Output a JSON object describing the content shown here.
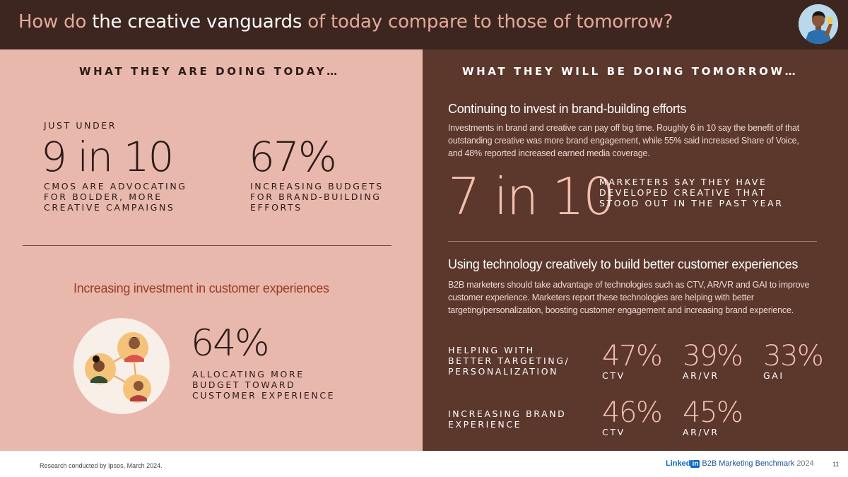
{
  "header": {
    "title_parts": [
      "How do ",
      "the creative vanguards",
      " of today compare to those of tomorrow?"
    ]
  },
  "left": {
    "section_heading": "WHAT THEY ARE DOING TODAY…",
    "stat1": {
      "prefix": "JUST UNDER",
      "value": "9 in 10",
      "desc_lines": [
        "CMOs ARE ADVOCATING",
        "FOR BOLDER, MORE",
        "CREATIVE CAMPAIGNS"
      ]
    },
    "stat2": {
      "value": "67%",
      "desc_lines": [
        "INCREASING BUDGETS",
        "FOR BRAND-BUILDING",
        "EFFORTS"
      ]
    },
    "heading2": "Increasing investment in customer experiences",
    "stat3": {
      "value": "64%",
      "desc_lines": [
        "ALLOCATING MORE",
        "BUDGET TOWARD",
        "CUSTOMER EXPERIENCE"
      ]
    }
  },
  "right": {
    "section_heading": "WHAT THEY WILL BE DOING TOMORROW…",
    "block1": {
      "heading": "Continuing to invest in brand-building efforts",
      "body": "Investments in brand and creative can pay off big time. Roughly 6 in 10 say the benefit of that outstanding creative was more brand engagement, while 55% said increased Share of Voice, and 48% reported increased earned media coverage.",
      "big": "7 in 10",
      "desc_lines": [
        "MARKETERS SAY THEY HAVE",
        "DEVELOPED CREATIVE THAT",
        "STOOD OUT IN THE PAST YEAR"
      ]
    },
    "block2": {
      "heading": "Using technology creatively to build better customer experiences",
      "body": "B2B marketers should take advantage of technologies such as CTV, AR/VR and GAI to improve customer experience. Marketers report these technologies are helping with better targeting/personalization, boosting customer engagement and increasing brand experience.",
      "row1": {
        "label_lines": [
          "HELPING WITH",
          "BETTER TARGETING/",
          "PERSONALIZATION"
        ],
        "stats": [
          {
            "value": "47%",
            "tech": "CTV"
          },
          {
            "value": "39%",
            "tech": "AR/VR"
          },
          {
            "value": "33%",
            "tech": "GAI"
          }
        ]
      },
      "row2": {
        "label_lines": [
          "INCREASING BRAND",
          "EXPERIENCE"
        ],
        "stats": [
          {
            "value": "46%",
            "tech": "CTV"
          },
          {
            "value": "45%",
            "tech": "AR/VR"
          }
        ]
      }
    }
  },
  "footer": {
    "note": "Research conducted by Ipsos, March 2024.",
    "brand_li": "Linked",
    "brand_in": "in",
    "brand_report": "B2B Marketing Benchmark",
    "brand_year": "2024",
    "page": "11"
  },
  "icons": {
    "avatar": "person-avatar-icon",
    "illustration": "connected-people-icon"
  },
  "colors": {
    "header_bg": "#3d2620",
    "title_accent": "#e3a99a",
    "left_bg": "#e8b8ad",
    "right_bg": "#5b372c",
    "stat_accent": "#f4bfae",
    "heading_red": "#9b3b22"
  }
}
